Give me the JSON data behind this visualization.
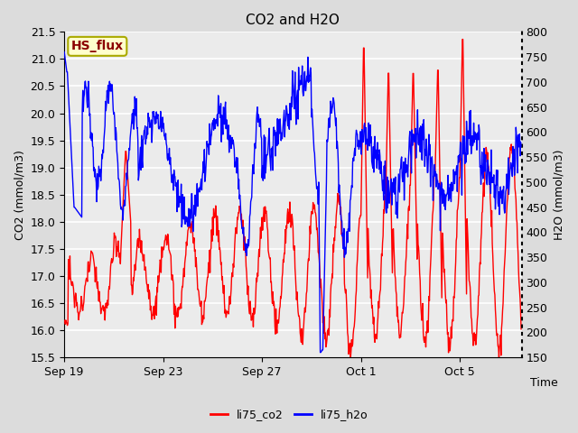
{
  "title": "CO2 and H2O",
  "xlabel": "Time",
  "ylabel_left": "CO2 (mmol/m3)",
  "ylabel_right": "H2O (mmol/m3)",
  "ylim_left": [
    15.5,
    21.5
  ],
  "ylim_right": [
    150,
    800
  ],
  "yticks_left": [
    15.5,
    16.0,
    16.5,
    17.0,
    17.5,
    18.0,
    18.5,
    19.0,
    19.5,
    20.0,
    20.5,
    21.0,
    21.5
  ],
  "yticks_right": [
    150,
    200,
    250,
    300,
    350,
    400,
    450,
    500,
    550,
    600,
    650,
    700,
    750,
    800
  ],
  "xtick_labels": [
    "Sep 19",
    "Sep 23",
    "Sep 27",
    "Oct 1",
    "Oct 5"
  ],
  "legend_labels": [
    "li75_co2",
    "li75_h2o"
  ],
  "legend_colors": [
    "red",
    "blue"
  ],
  "annotation_text": "HS_flux",
  "bg_color": "#dcdcdc",
  "plot_bg_color": "#ebebeb",
  "grid_color": "white",
  "co2_color": "red",
  "h2o_color": "blue",
  "line_width": 1.0
}
